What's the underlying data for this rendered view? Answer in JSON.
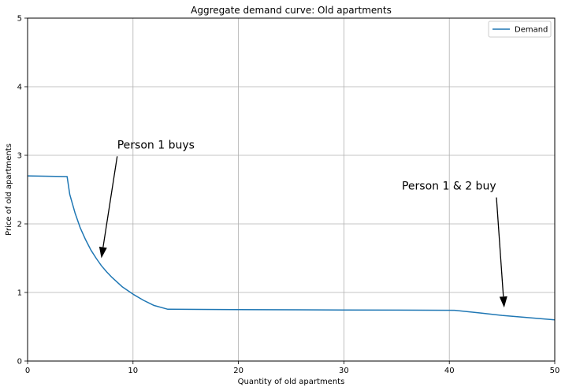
{
  "chart_data": {
    "type": "line",
    "title": "Aggregate demand curve: Old apartments",
    "xlabel": "Quantity of old apartments",
    "ylabel": "Price of old apartments",
    "xlim": [
      0,
      50
    ],
    "ylim": [
      0,
      5
    ],
    "xticks": [
      0,
      10,
      20,
      30,
      40,
      50
    ],
    "yticks": [
      0,
      1,
      2,
      3,
      4,
      5
    ],
    "grid": true,
    "legend_position": "top-right",
    "colors": {
      "series": "#1f77b4"
    },
    "series": [
      {
        "name": "Demand",
        "x": [
          0,
          3.75,
          4.0,
          4.5,
          5.0,
          5.5,
          6.0,
          6.5,
          7.0,
          7.5,
          8.0,
          9.0,
          10.0,
          11.0,
          12.0,
          13.3,
          20,
          30,
          40.5,
          43,
          45,
          47,
          50
        ],
        "y": [
          2.7,
          2.69,
          2.43,
          2.16,
          1.94,
          1.77,
          1.62,
          1.5,
          1.39,
          1.3,
          1.22,
          1.08,
          0.975,
          0.885,
          0.81,
          0.755,
          0.75,
          0.745,
          0.74,
          0.7,
          0.665,
          0.64,
          0.6
        ]
      }
    ],
    "annotations": [
      {
        "text": "Person 1 buys",
        "text_xy": [
          8.5,
          3.1
        ],
        "point_xy": [
          7.0,
          1.5
        ]
      },
      {
        "text": "Person 1 & 2 buy",
        "text_xy": [
          35.5,
          2.5
        ],
        "point_xy": [
          45.2,
          0.78
        ]
      }
    ]
  }
}
